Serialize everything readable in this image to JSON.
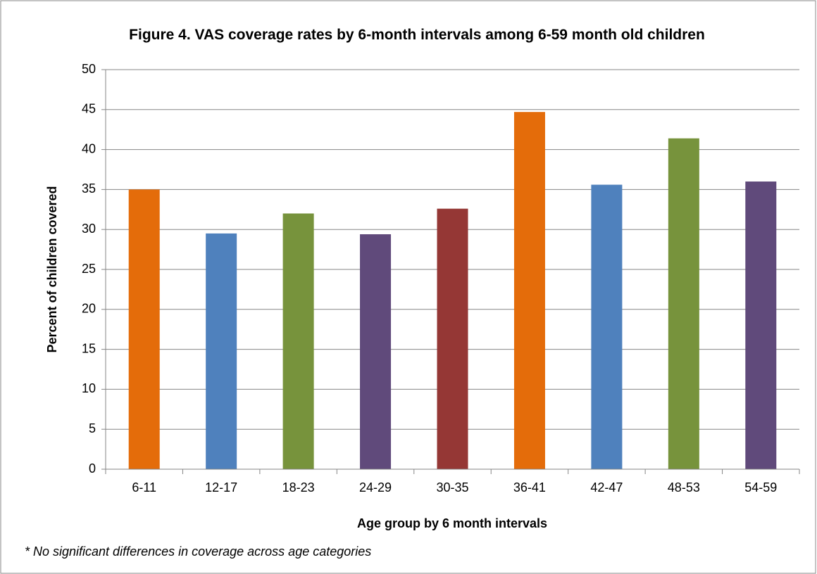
{
  "chart_data": {
    "type": "bar",
    "title": "Figure 4. VAS coverage rates by 6-month intervals among 6-59 month old children",
    "x_label": "Age group by 6 month intervals",
    "y_label": "Percent of children covered",
    "footnote": "* No significant differences in coverage across age categories",
    "categories": [
      "6-11",
      "12-17",
      "18-23",
      "24-29",
      "30-35",
      "36-41",
      "42-47",
      "48-53",
      "54-59"
    ],
    "values": [
      35,
      29.5,
      32,
      29.4,
      32.6,
      44.7,
      35.6,
      41.4,
      36
    ],
    "colors": [
      "#e46c0a",
      "#4f81bd",
      "#77933c",
      "#604a7b",
      "#953735",
      "#e46c0a",
      "#4f81bd",
      "#77933c",
      "#604a7b"
    ],
    "ylim": [
      0,
      50
    ],
    "yticks": [
      0,
      5,
      10,
      15,
      20,
      25,
      30,
      35,
      40,
      45,
      50
    ],
    "grid": true
  }
}
